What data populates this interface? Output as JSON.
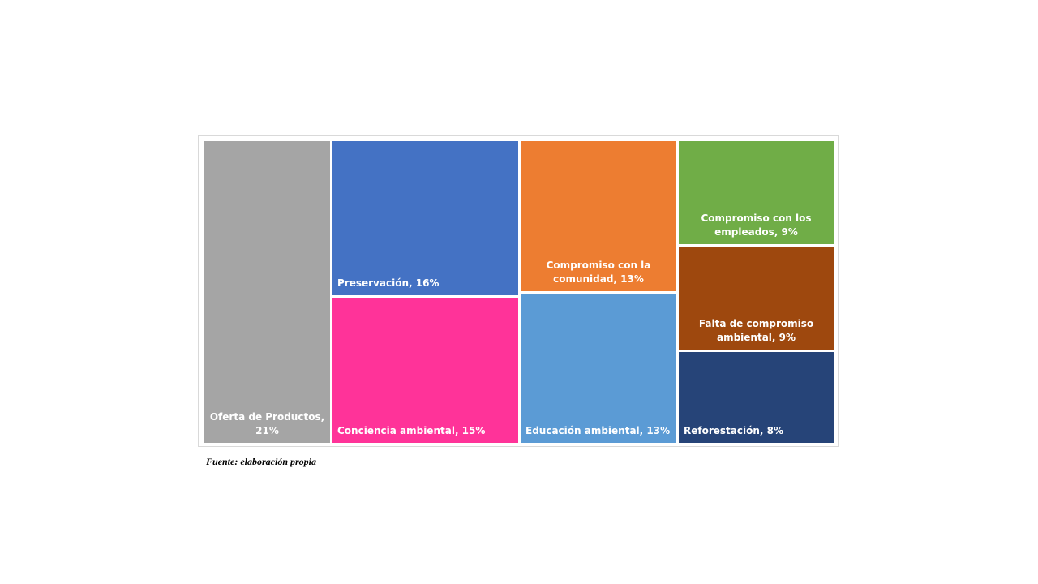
{
  "chart_data": {
    "type": "treemap",
    "title": "",
    "items": [
      {
        "label": "Oferta de Productos, 21%",
        "category": "Oferta de Productos",
        "value": 21,
        "color": "#a5a5a5"
      },
      {
        "label": "Preservación, 16%",
        "category": "Preservación",
        "value": 16,
        "color": "#4472c4"
      },
      {
        "label": "Conciencia ambiental, 15%",
        "category": "Conciencia ambiental",
        "value": 15,
        "color": "#ff3399"
      },
      {
        "label": "Compromiso con la comunidad, 13%",
        "category": "Compromiso con la comunidad",
        "value": 13,
        "color": "#ed7d31"
      },
      {
        "label": "Educación ambiental, 13%",
        "category": "Educación ambiental",
        "value": 13,
        "color": "#5b9bd5"
      },
      {
        "label": "Compromiso con los empleados, 9%",
        "category": "Compromiso con los empleados",
        "value": 9,
        "color": "#70ad47"
      },
      {
        "label": "Falta de compromiso ambiental, 9%",
        "category": "Falta de compromiso ambiental",
        "value": 9,
        "color": "#9e480e"
      },
      {
        "label": "Reforestación, 8%",
        "category": "Reforestación",
        "value": 8,
        "color": "#264478"
      }
    ]
  },
  "source_note": "Fuente: elaboración propia"
}
